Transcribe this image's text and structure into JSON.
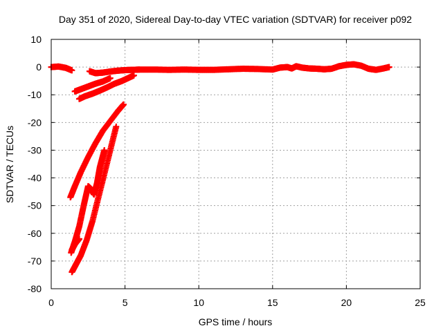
{
  "chart_data": {
    "type": "scatter",
    "title": "Day 351 of 2020, Sidereal Day-to-day VTEC variation (SDTVAR) for receiver p092",
    "xlabel": "GPS time / hours",
    "ylabel": "SDTVAR / TECUs",
    "xlim": [
      0,
      25
    ],
    "ylim": [
      -80,
      10
    ],
    "xticks": [
      0,
      5,
      10,
      15,
      20,
      25
    ],
    "yticks": [
      10,
      0,
      -10,
      -20,
      -30,
      -40,
      -50,
      -60,
      -70,
      -80
    ],
    "grid": true,
    "series_color": "#ff0000",
    "series": [
      {
        "x": [
          0.0,
          0.5,
          1.0,
          1.4
        ],
        "y": [
          0.0,
          0.2,
          -0.3,
          -1.2
        ]
      },
      {
        "x": [
          1.6,
          2.0,
          2.5,
          3.0,
          3.5,
          4.0
        ],
        "y": [
          -8.8,
          -8.0,
          -7.0,
          -6.0,
          -5.2,
          -4.0
        ]
      },
      {
        "x": [
          1.9,
          2.3,
          2.8,
          3.3,
          3.8,
          4.3,
          4.8,
          5.2,
          5.6
        ],
        "y": [
          -11.5,
          -10.5,
          -9.6,
          -8.5,
          -7.3,
          -6.0,
          -5.0,
          -4.0,
          -3.0
        ]
      },
      {
        "x": [
          2.6,
          3.0,
          3.5,
          4.0,
          4.5,
          5.0,
          5.5,
          6.0,
          7.0,
          8.0,
          9.0,
          10.0,
          11.0,
          12.0,
          13.0,
          14.0,
          15.0,
          15.5,
          16.0,
          16.3,
          16.6,
          17.0,
          17.5,
          18.0,
          18.5,
          19.0,
          19.5,
          20.0,
          20.5,
          21.0,
          21.5,
          22.0,
          22.5,
          22.9
        ],
        "y": [
          -1.5,
          -2.2,
          -2.0,
          -1.6,
          -1.3,
          -1.1,
          -1.0,
          -0.9,
          -0.9,
          -1.0,
          -0.9,
          -1.0,
          -1.0,
          -0.8,
          -0.6,
          -0.7,
          -0.9,
          -0.2,
          0.0,
          -0.5,
          0.3,
          -0.2,
          -0.5,
          -0.6,
          -0.8,
          -0.6,
          0.3,
          0.8,
          1.0,
          0.5,
          -0.6,
          -1.0,
          -0.5,
          0.0
        ]
      },
      {
        "x": [
          1.3,
          1.6,
          2.0,
          2.5,
          3.0,
          3.5,
          4.0,
          4.5,
          4.9
        ],
        "y": [
          -47.0,
          -43.0,
          -38.0,
          -32.5,
          -27.5,
          -23.0,
          -19.5,
          -16.0,
          -13.5
        ]
      },
      {
        "x": [
          1.35,
          1.6,
          1.9,
          2.2,
          2.5,
          2.7,
          2.9,
          3.1,
          3.3,
          3.6
        ],
        "y": [
          -67.0,
          -63.0,
          -57.5,
          -50.0,
          -43.0,
          -44.0,
          -46.0,
          -42.0,
          -36.0,
          -30.0
        ]
      },
      {
        "x": [
          1.4,
          1.7,
          2.0,
          2.4,
          2.8,
          3.2,
          3.6,
          4.0,
          4.4
        ],
        "y": [
          -74.0,
          -71.0,
          -68.0,
          -62.5,
          -55.5,
          -47.0,
          -38.5,
          -30.0,
          -21.5
        ]
      },
      {
        "x": [
          1.4,
          1.6,
          1.9
        ],
        "y": [
          -66.0,
          -64.0,
          -62.0
        ]
      }
    ]
  }
}
